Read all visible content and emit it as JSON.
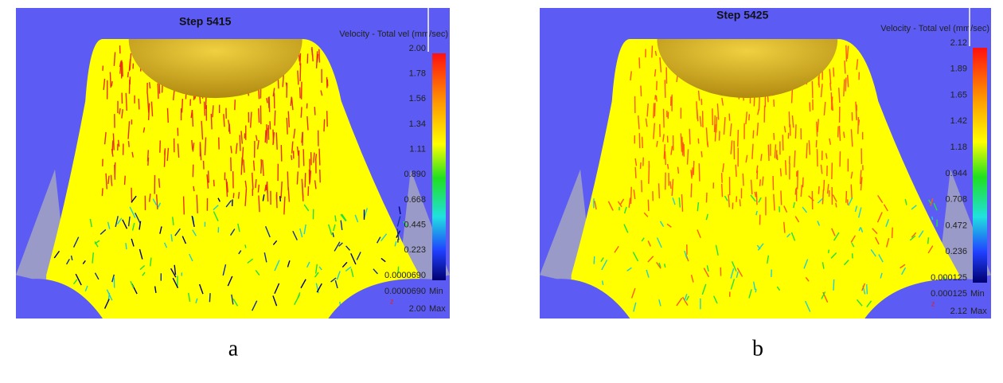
{
  "panels": [
    {
      "step": "Step 5415",
      "legend_title": "Velocity - Total vel (mm/sec)",
      "ticks": [
        "2.00",
        "1.78",
        "1.56",
        "1.34",
        "1.11",
        "0.890",
        "0.668",
        "0.445",
        "0.223",
        "0.0000690"
      ],
      "min_value": "0.0000690",
      "min_label": "Min",
      "max_value": "2.00",
      "max_label": "Max",
      "axis_marker": "z",
      "caption": "a"
    },
    {
      "step": "Step 5425",
      "legend_title": "Velocity - Total vel (mm/sec)",
      "ticks": [
        "2.12",
        "1.89",
        "1.65",
        "1.42",
        "1.18",
        "0.944",
        "0.708",
        "0.472",
        "0.236",
        "0.000125"
      ],
      "min_value": "0.000125",
      "min_label": "Min",
      "max_value": "2.12",
      "max_label": "Max",
      "axis_marker": "z",
      "caption": "b"
    }
  ]
}
